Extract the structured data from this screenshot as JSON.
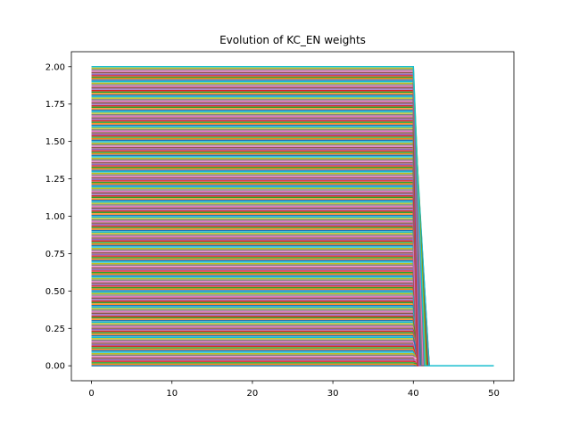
{
  "chart_data": {
    "type": "line",
    "title": "Evolution of KC_EN weights",
    "xlabel": "",
    "ylabel": "",
    "xlim": [
      -2.5,
      52.5
    ],
    "ylim": [
      -0.1,
      2.1
    ],
    "x_ticks": [
      "0",
      "10",
      "20",
      "30",
      "40",
      "50"
    ],
    "x_tick_values": [
      0,
      10,
      20,
      30,
      40,
      50
    ],
    "y_ticks": [
      "0.00",
      "0.25",
      "0.50",
      "0.75",
      "1.00",
      "1.25",
      "1.50",
      "1.75",
      "2.00"
    ],
    "y_tick_values": [
      0,
      0.25,
      0.5,
      0.75,
      1.0,
      1.25,
      1.5,
      1.75,
      2.0
    ],
    "grid": false,
    "legend": "none",
    "series_description": {
      "count": 200,
      "initial_weight_range": [
        0.0,
        2.0
      ],
      "constant_until_x": 40,
      "decay_end_x_range": [
        40.5,
        42.0
      ],
      "final_weight": 0.0,
      "x_max": 50
    },
    "palette": [
      "#1f77b4",
      "#ff7f0e",
      "#2ca02c",
      "#d62728",
      "#9467bd",
      "#8c564b",
      "#e377c2",
      "#7f7f7f",
      "#bcbd22",
      "#17becf"
    ]
  }
}
